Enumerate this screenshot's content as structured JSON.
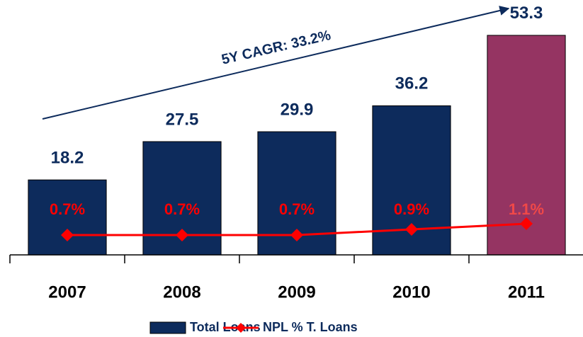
{
  "chart_data": {
    "type": "bar",
    "annotation": "5Y CAGR: 33.2%",
    "categories": [
      "2007",
      "2008",
      "2009",
      "2010",
      "2011"
    ],
    "series": [
      {
        "name": "Total Loans",
        "type": "bar",
        "color": "#0d2b5c",
        "colors": [
          "#0d2b5c",
          "#0d2b5c",
          "#0d2b5c",
          "#0d2b5c",
          "#953462"
        ],
        "values": [
          18.2,
          27.5,
          29.9,
          36.2,
          53.3
        ]
      },
      {
        "name": "NPL % T. Loans",
        "type": "line",
        "axis": "y2",
        "color": "#ff0000",
        "values": [
          0.7,
          0.7,
          0.7,
          0.9,
          1.1
        ],
        "value_labels": [
          "0.7%",
          "0.7%",
          "0.7%",
          "0.9%",
          "1.1%"
        ]
      }
    ],
    "ylim": [
      0,
      55
    ],
    "y2lim": [
      0,
      8
    ],
    "grid": false,
    "legend": "bottom"
  }
}
